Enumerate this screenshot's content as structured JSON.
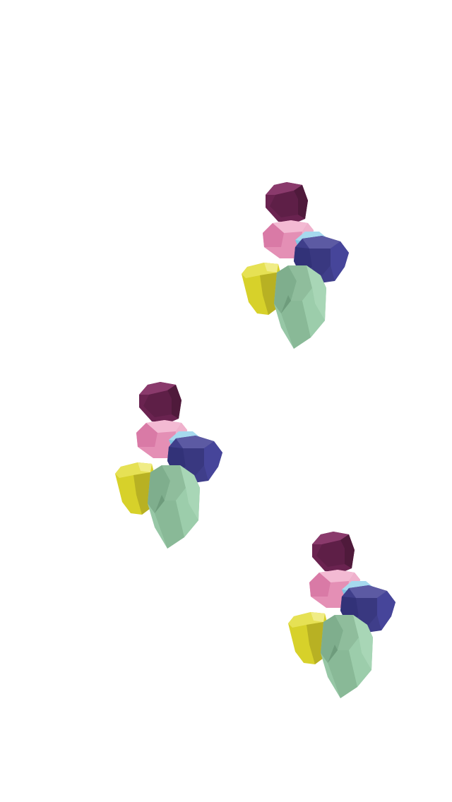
{
  "scene": {
    "background": "#ffffff",
    "cluster_count": 3,
    "clusters": [
      {
        "id": "cluster-top-right"
      },
      {
        "id": "cluster-middle-left"
      },
      {
        "id": "cluster-bottom-right"
      }
    ],
    "gem_colors": {
      "maroon": "#6a2350",
      "pink": "#e48fb5",
      "light_blue": "#a6d9ee",
      "navy": "#3f3e8a",
      "yellow": "#d8d22a",
      "mint": "#97c7a6"
    }
  }
}
